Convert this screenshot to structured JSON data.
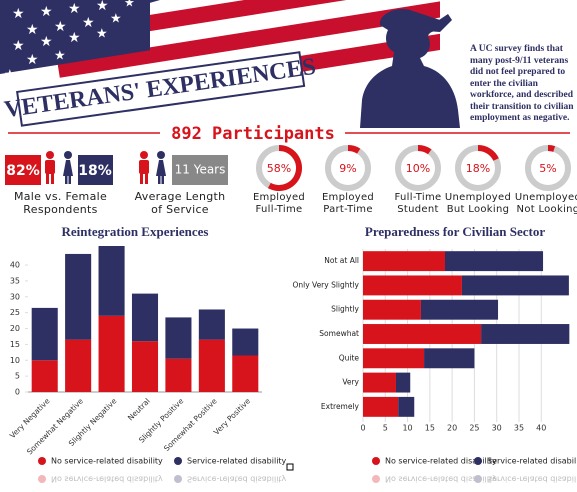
{
  "header": {
    "title": "VETERANS' EXPERIENCES",
    "summary": "A UC survey finds that many post-9/11 veterans did not feel prepared to enter the civilian workforce, and described their transition to civilian employment as negative."
  },
  "participants": "892 Participants",
  "gender": {
    "male": "82%",
    "female": "18%",
    "caption": "Male vs. Female Respondents"
  },
  "service": {
    "value": "11 Years",
    "caption": "Average Length of Service"
  },
  "chart_data": [
    {
      "type": "donut",
      "categories": [
        "Employed Full-Time",
        "Employed Part-Time",
        "Full-Time Student",
        "Unemployed But Looking",
        "Unemployed Not Looking"
      ],
      "values": [
        58,
        9,
        10,
        18,
        5
      ],
      "value_labels": [
        "58%",
        "9%",
        "10%",
        "18%",
        "5%"
      ],
      "color": "#d7141c",
      "track_color": "#cccccc"
    },
    {
      "type": "bar",
      "title": "Reintegration Experiences",
      "stacked": true,
      "categories": [
        "Very Negative",
        "Somewhat Negative",
        "Slightly Negative",
        "Neutral",
        "Slightly Positive",
        "Somewhat Positive",
        "Very Positive"
      ],
      "series": [
        {
          "name": "No service-related disability",
          "color": "#d7141c",
          "values": [
            10,
            16.5,
            24,
            16,
            10.5,
            16.5,
            11.5
          ]
        },
        {
          "name": "Service-related disability",
          "color": "#2e2f63",
          "values": [
            16.5,
            27,
            22,
            15,
            13,
            9.5,
            8.5
          ]
        }
      ],
      "ylim": [
        0,
        46
      ],
      "yticks": [
        0,
        5,
        10,
        15,
        20,
        25,
        30,
        35,
        40
      ],
      "grid": false
    },
    {
      "type": "barh",
      "title": "Preparedness for Civilian Sector",
      "stacked": true,
      "categories": [
        "Not at All",
        "Only Very Slightly",
        "Slightly",
        "Somewhat",
        "Quite",
        "Very",
        "Extremely"
      ],
      "series": [
        {
          "name": "No service-related disability",
          "color": "#d7141c",
          "values": [
            18.4,
            22.2,
            13,
            26.5,
            13.7,
            7.4,
            7.9
          ]
        },
        {
          "name": "Service-related disability",
          "color": "#2e2f63",
          "values": [
            22,
            24,
            17.3,
            19.8,
            11.3,
            3.2,
            3.6
          ]
        }
      ],
      "xlim": [
        0,
        46
      ],
      "xticks": [
        0,
        5,
        10,
        15,
        20,
        25,
        30,
        35,
        40
      ],
      "grid": true
    }
  ]
}
